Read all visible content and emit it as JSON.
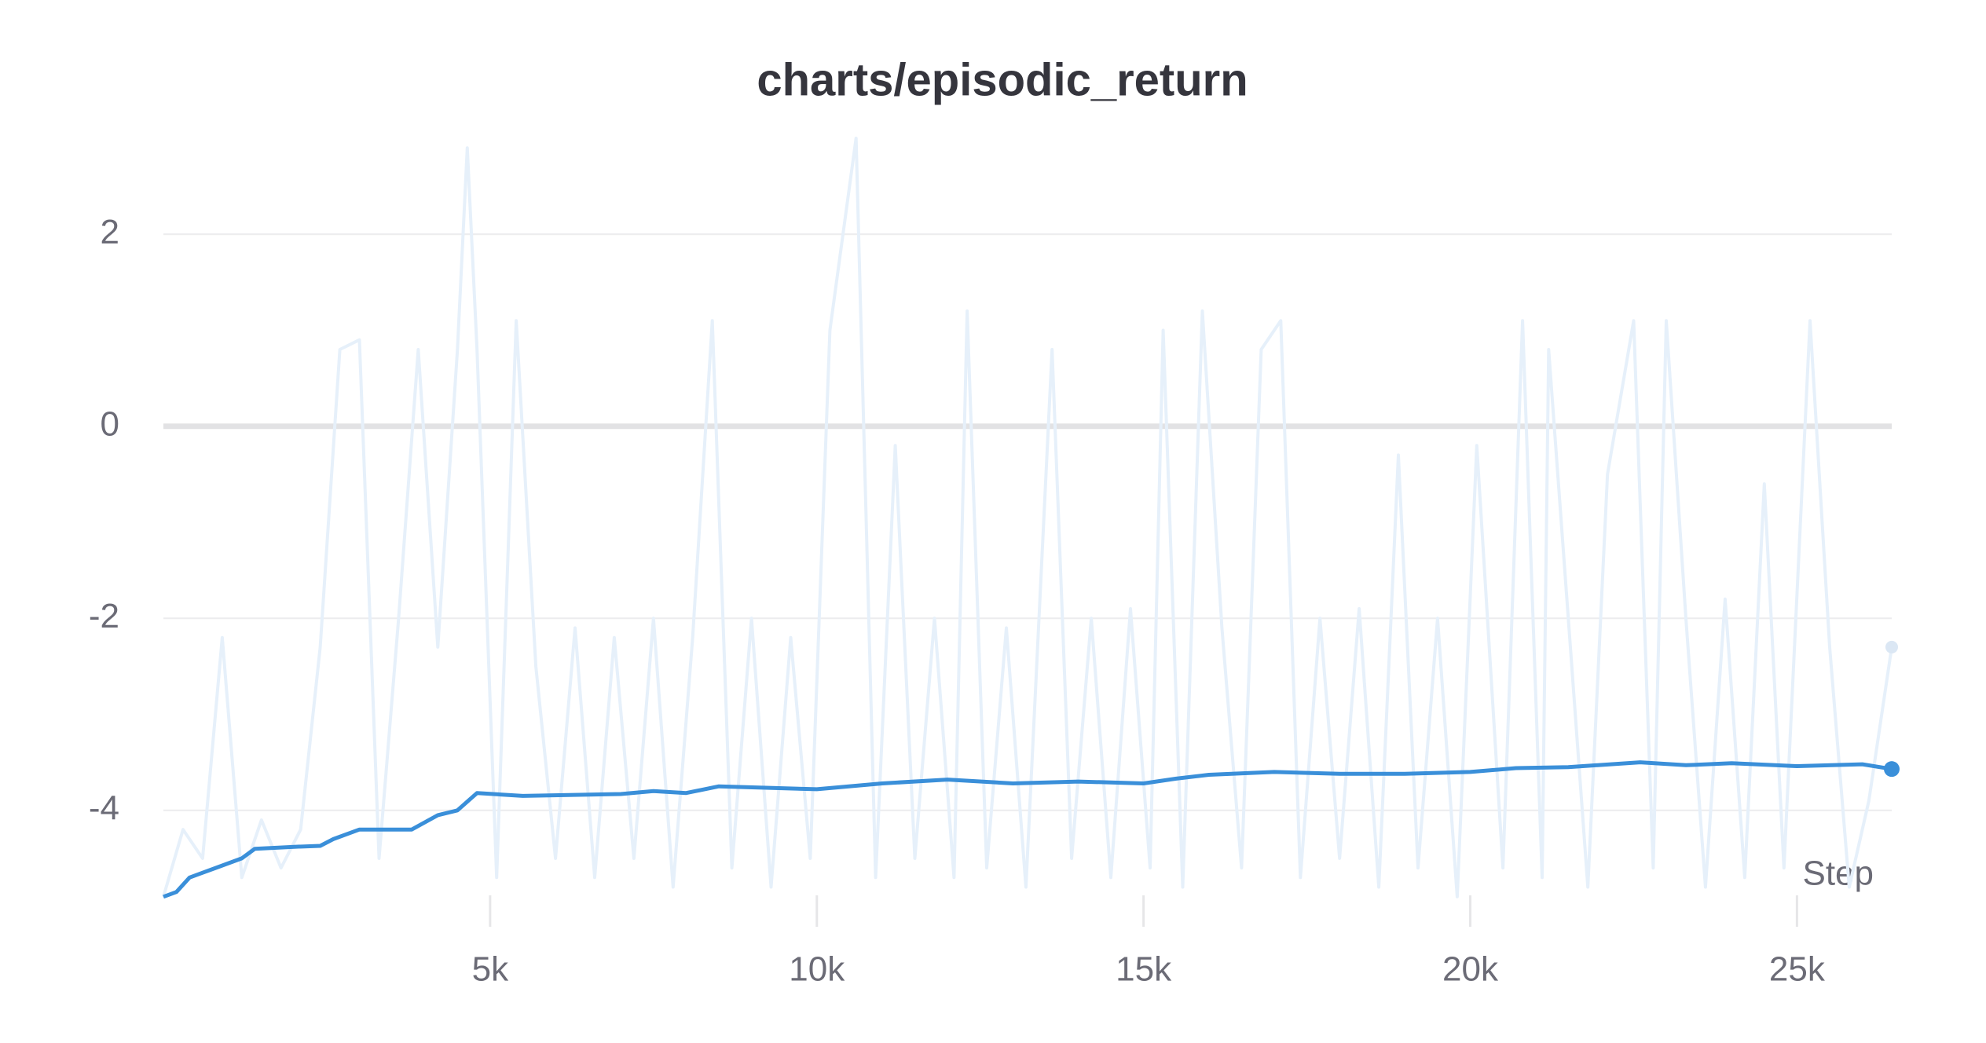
{
  "chart_data": {
    "type": "line",
    "title": "charts/episodic_return",
    "x_label": "Step",
    "xlim": [
      0,
      26450
    ],
    "ylim": [
      -5,
      3
    ],
    "xticks": [
      {
        "value": 5000,
        "label": "5k"
      },
      {
        "value": 10000,
        "label": "10k"
      },
      {
        "value": 15000,
        "label": "15k"
      },
      {
        "value": 20000,
        "label": "20k"
      },
      {
        "value": 25000,
        "label": "25k"
      }
    ],
    "yticks": [
      2,
      0,
      -2,
      -4
    ],
    "grid": true,
    "series": [
      {
        "color": "#e6f0fa",
        "x": [
          0,
          300,
          600,
          900,
          1200,
          1500,
          1800,
          2100,
          2400,
          2700,
          3000,
          3300,
          3600,
          3900,
          4200,
          4500,
          4650,
          4800,
          5100,
          5400,
          5700,
          6000,
          6300,
          6600,
          6900,
          7200,
          7500,
          7800,
          8100,
          8400,
          8700,
          9000,
          9300,
          9600,
          9900,
          10200,
          10600,
          10900,
          11200,
          11500,
          11800,
          12100,
          12300,
          12600,
          12900,
          13200,
          13600,
          13900,
          14200,
          14500,
          14800,
          15100,
          15300,
          15600,
          15900,
          16200,
          16500,
          16800,
          17100,
          17400,
          17700,
          18000,
          18300,
          18600,
          18900,
          19200,
          19500,
          19800,
          20100,
          20500,
          20800,
          21100,
          21200,
          21500,
          21800,
          22100,
          22500,
          22800,
          23000,
          23300,
          23600,
          23900,
          24200,
          24500,
          24800,
          25200,
          25500,
          25800,
          26100,
          26450
        ],
        "values": [
          -4.9,
          -4.2,
          -4.5,
          -2.2,
          -4.7,
          -4.1,
          -4.6,
          -4.2,
          -2.3,
          0.8,
          0.9,
          -4.5,
          -2.0,
          0.8,
          -2.3,
          0.8,
          2.9,
          0.8,
          -4.7,
          1.1,
          -2.5,
          -4.5,
          -2.1,
          -4.7,
          -2.2,
          -4.5,
          -2.0,
          -4.8,
          -2.2,
          1.1,
          -4.6,
          -2.0,
          -4.8,
          -2.2,
          -4.5,
          1.0,
          3.0,
          -4.7,
          -0.2,
          -4.5,
          -2.0,
          -4.7,
          1.2,
          -4.6,
          -2.1,
          -4.8,
          0.8,
          -4.5,
          -2.0,
          -4.7,
          -1.9,
          -4.6,
          1.0,
          -4.8,
          1.2,
          -2.1,
          -4.6,
          0.8,
          1.1,
          -4.7,
          -2.0,
          -4.5,
          -1.9,
          -4.8,
          -0.3,
          -4.6,
          -2.0,
          -4.9,
          -0.2,
          -4.6,
          1.1,
          -4.7,
          0.8,
          -2.0,
          -4.8,
          -0.5,
          1.1,
          -4.6,
          1.1,
          -2.0,
          -4.8,
          -1.8,
          -4.7,
          -0.6,
          -4.6,
          1.1,
          -2.3,
          -4.8,
          -3.9,
          -2.3
        ]
      },
      {
        "color": "#3a8fd9",
        "x": [
          0,
          200,
          400,
          800,
          1200,
          1400,
          2000,
          2400,
          2600,
          3000,
          3800,
          4200,
          4500,
          4800,
          5500,
          7000,
          7500,
          8000,
          8500,
          10000,
          11000,
          12000,
          13000,
          14000,
          15000,
          15500,
          16000,
          17000,
          18000,
          19000,
          20000,
          20700,
          21500,
          22600,
          23300,
          24000,
          25000,
          26000,
          26450
        ],
        "values": [
          -4.9,
          -4.85,
          -4.7,
          -4.6,
          -4.5,
          -4.4,
          -4.38,
          -4.37,
          -4.3,
          -4.2,
          -4.2,
          -4.05,
          -4.0,
          -3.82,
          -3.85,
          -3.83,
          -3.8,
          -3.82,
          -3.75,
          -3.78,
          -3.72,
          -3.68,
          -3.72,
          -3.7,
          -3.72,
          -3.67,
          -3.63,
          -3.6,
          -3.62,
          -3.62,
          -3.6,
          -3.56,
          -3.55,
          -3.5,
          -3.53,
          -3.51,
          -3.54,
          -3.52,
          -3.57
        ]
      }
    ]
  }
}
